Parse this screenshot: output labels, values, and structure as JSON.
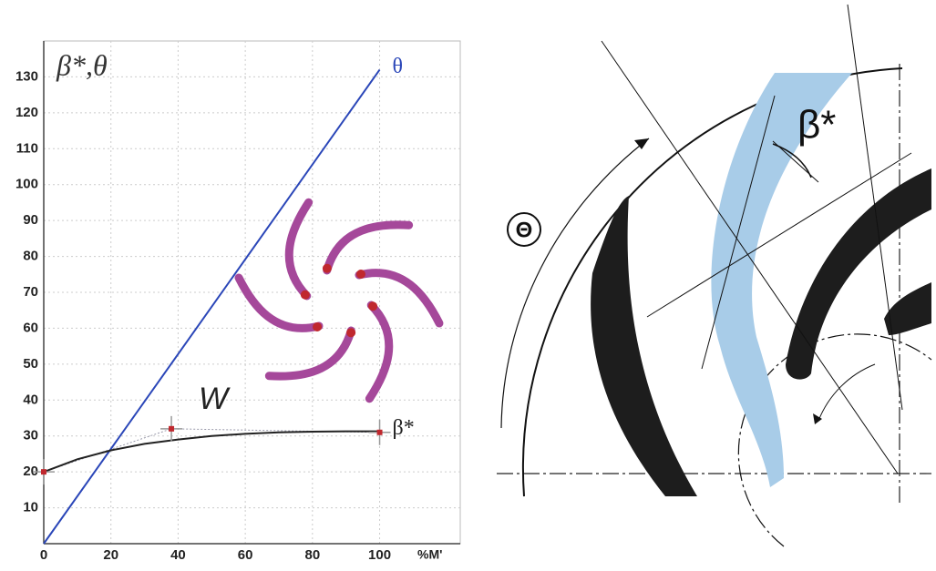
{
  "chart_data": {
    "type": "line",
    "title": "β*,θ",
    "xlabel": "%M'",
    "xlim": [
      0,
      124
    ],
    "ylim": [
      0,
      140
    ],
    "xticks": [
      0,
      20,
      40,
      60,
      80,
      100
    ],
    "yticks": [
      10,
      20,
      30,
      40,
      50,
      60,
      70,
      80,
      90,
      100,
      110,
      120,
      130
    ],
    "grid": true,
    "series": [
      {
        "name": "θ",
        "color": "#2a46b8",
        "x": [
          0,
          100
        ],
        "values": [
          0,
          132
        ]
      },
      {
        "name": "β*",
        "color": "#222222",
        "x": [
          0,
          10,
          20,
          30,
          40,
          50,
          60,
          70,
          80,
          90,
          100
        ],
        "values": [
          20,
          23.5,
          26,
          27.8,
          29,
          30,
          30.6,
          31,
          31.2,
          31.3,
          31.3
        ]
      }
    ],
    "control_points": {
      "x": [
        0,
        38,
        100
      ],
      "y": [
        20,
        32,
        31
      ]
    },
    "annotation": "W"
  },
  "diagram": {
    "labels": [
      "β*",
      "Θ"
    ]
  }
}
